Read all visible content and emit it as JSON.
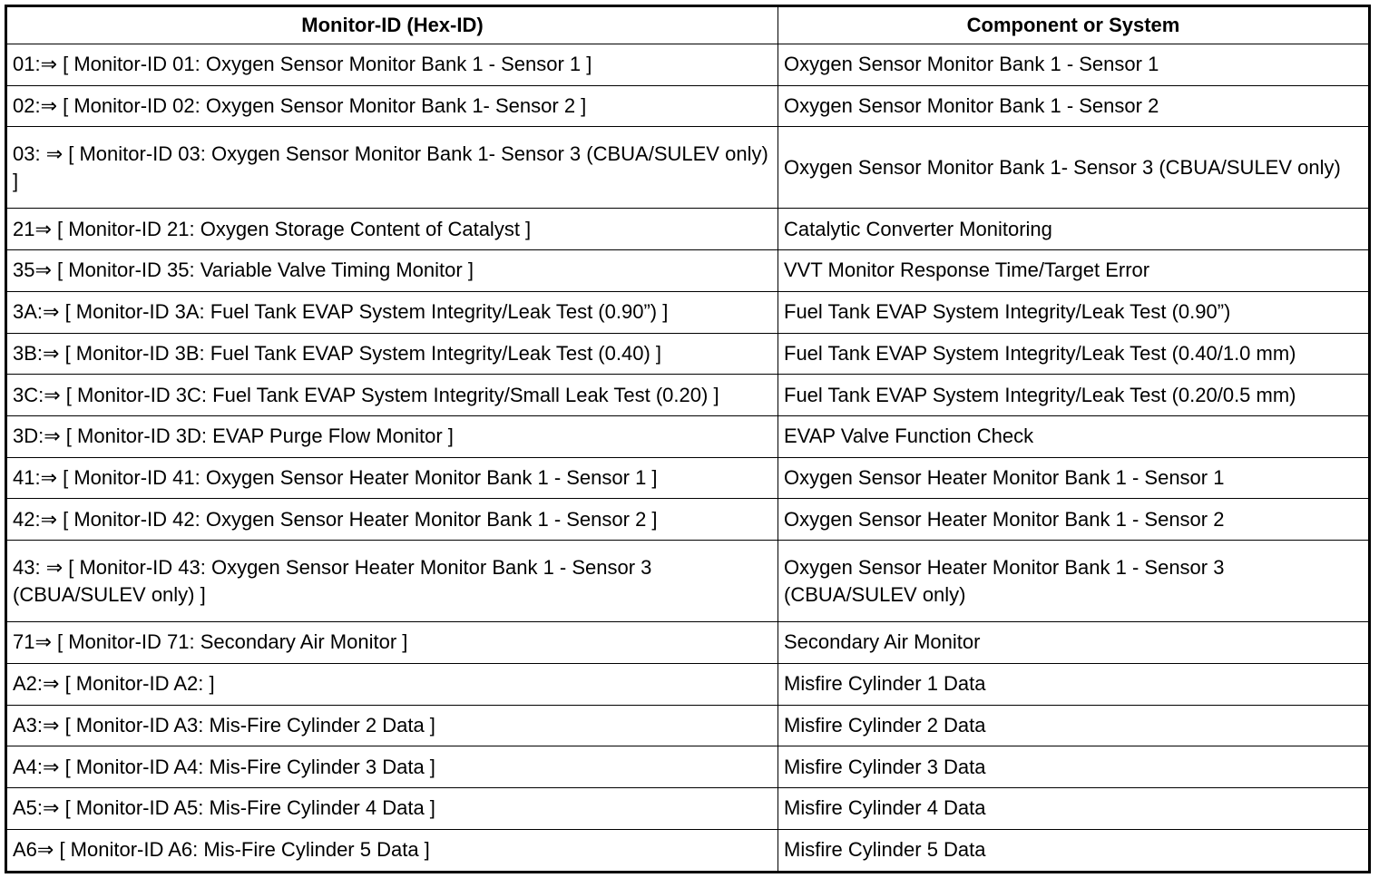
{
  "table": {
    "headers": [
      "Monitor-ID (Hex-ID)",
      "Component or System"
    ],
    "rows": [
      [
        "01:⇒ [ Monitor-ID 01: Oxygen Sensor Monitor Bank 1 - Sensor 1 ]",
        "Oxygen Sensor Monitor Bank 1 - Sensor 1"
      ],
      [
        "02:⇒ [ Monitor-ID 02: Oxygen Sensor Monitor Bank 1- Sensor 2 ]",
        "Oxygen Sensor Monitor Bank 1 - Sensor 2"
      ],
      [
        "03: ⇒ [ Monitor-ID 03: Oxygen Sensor Monitor Bank 1- Sensor 3 (CBUA/SULEV only) ]",
        "Oxygen Sensor Monitor Bank 1- Sensor 3 (CBUA/SULEV only)"
      ],
      [
        "21⇒ [ Monitor-ID 21: Oxygen Storage Content of Catalyst ]",
        "Catalytic Converter Monitoring"
      ],
      [
        "35⇒ [ Monitor-ID 35: Variable Valve Timing Monitor ]",
        "VVT Monitor Response Time/Target Error"
      ],
      [
        "3A:⇒ [ Monitor-ID 3A: Fuel Tank EVAP System Integrity/Leak Test (0.90”) ]",
        "Fuel Tank EVAP System Integrity/Leak Test (0.90”)"
      ],
      [
        "3B:⇒ [ Monitor-ID 3B: Fuel Tank EVAP System Integrity/Leak Test (0.40) ]",
        "Fuel Tank EVAP System Integrity/Leak Test (0.40/1.0 mm)"
      ],
      [
        "3C:⇒ [ Monitor-ID 3C: Fuel Tank EVAP System Integrity/Small Leak Test (0.20) ]",
        "Fuel Tank EVAP System Integrity/Leak Test (0.20/0.5 mm)"
      ],
      [
        "3D:⇒ [ Monitor-ID 3D: EVAP Purge Flow Monitor ]",
        "EVAP Valve Function Check"
      ],
      [
        "41:⇒ [ Monitor-ID 41: Oxygen Sensor Heater Monitor Bank 1 - Sensor 1 ]",
        "Oxygen Sensor Heater Monitor Bank 1 - Sensor 1"
      ],
      [
        "42:⇒ [ Monitor-ID 42: Oxygen Sensor Heater Monitor Bank 1 - Sensor 2 ]",
        "Oxygen Sensor Heater Monitor Bank 1 - Sensor 2"
      ],
      [
        "43: ⇒ [ Monitor-ID 43: Oxygen Sensor Heater Monitor Bank 1 - Sensor 3 (CBUA/SULEV only) ]",
        "Oxygen Sensor Heater Monitor Bank 1 - Sensor 3 (CBUA/SULEV only)"
      ],
      [
        "71⇒ [ Monitor-ID 71: Secondary Air Monitor ]",
        "Secondary Air Monitor"
      ],
      [
        "A2:⇒ [ Monitor-ID A2: ]",
        "Misfire Cylinder 1 Data"
      ],
      [
        "A3:⇒ [ Monitor-ID A3: Mis-Fire Cylinder 2 Data ]",
        "Misfire Cylinder 2 Data"
      ],
      [
        "A4:⇒ [ Monitor-ID A4: Mis-Fire Cylinder 3 Data ]",
        "Misfire Cylinder 3 Data"
      ],
      [
        "A5:⇒ [ Monitor-ID A5: Mis-Fire Cylinder 4 Data ]",
        "Misfire Cylinder 4 Data"
      ],
      [
        "A6⇒ [ Monitor-ID A6: Mis-Fire Cylinder 5 Data ]",
        "Misfire Cylinder 5 Data"
      ]
    ]
  }
}
